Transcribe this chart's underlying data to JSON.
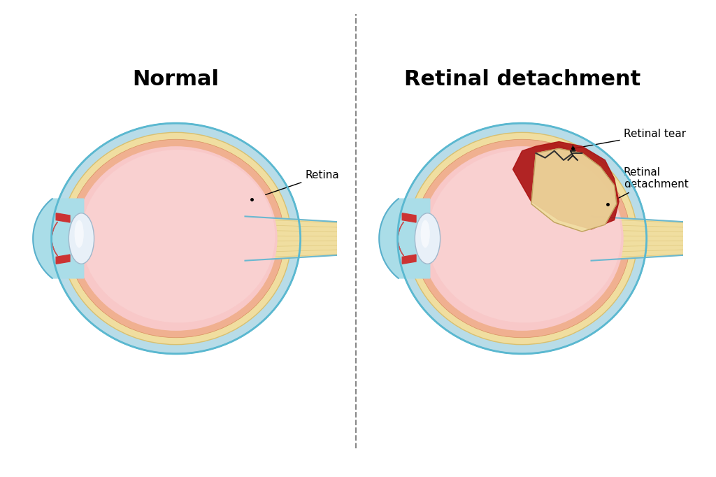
{
  "title_normal": "Normal",
  "title_retinal": "Retinal detachment",
  "title_fontsize": 22,
  "title_fontweight": "bold",
  "bg_color": "#ffffff",
  "label_retina": "Retina",
  "label_retinal_tear": "Retinal tear",
  "label_retinal_detachment": "Retinal\ndetachment",
  "color_outer_sclera": "#aed6e8",
  "color_choroid": "#f5e6b0",
  "color_retina_layer": "#f0c8a0",
  "color_inner_fill": "#f5b8b8",
  "color_blue_outer": "#6cc0d8",
  "color_nerve": "#f5e6b0",
  "color_red_region": "#cc2222",
  "color_cornea": "#aed6e8",
  "color_iris": "#cc3333",
  "color_lens": "#e8eef5",
  "annotation_color": "#111111",
  "divider_color": "#888888"
}
